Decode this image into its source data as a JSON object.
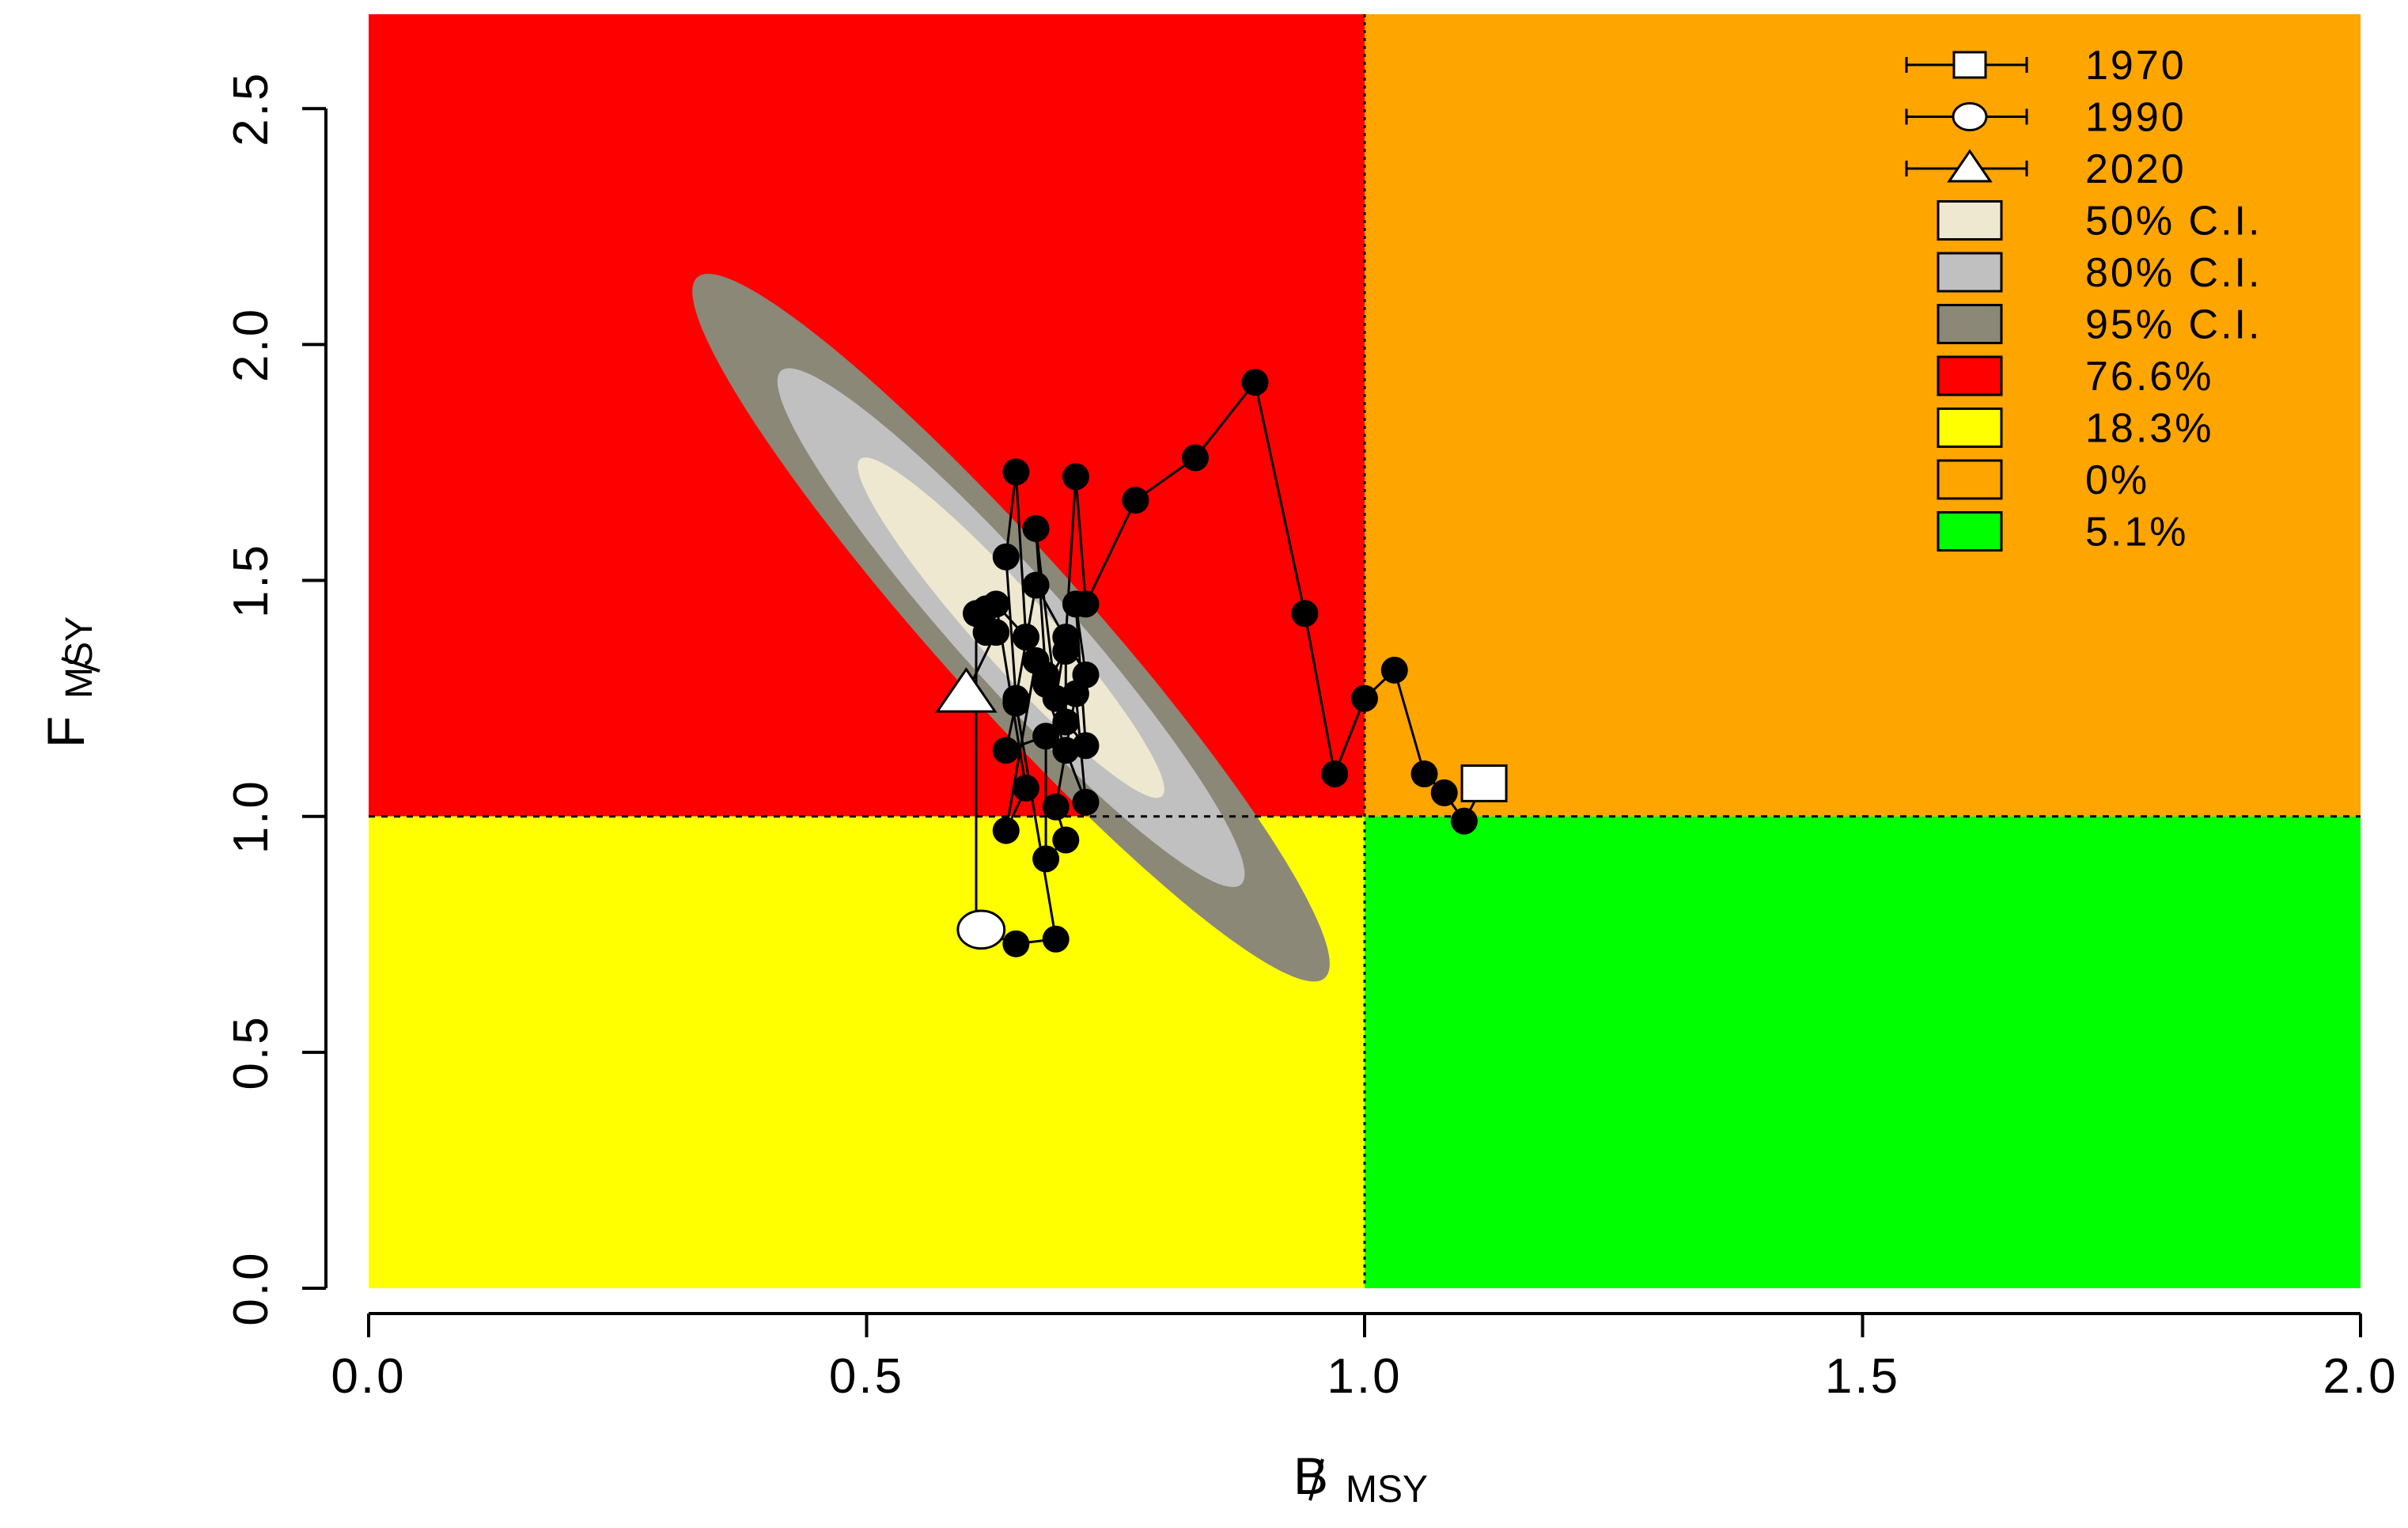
{
  "chart_data": {
    "type": "scatter",
    "title": "",
    "xlabel": {
      "main": "B",
      "sub": "MSY"
    },
    "ylabel": {
      "main": "F",
      "sub": "MSY"
    },
    "xlim": [
      0,
      2
    ],
    "ylim": [
      0,
      2.7
    ],
    "x_ticks": [
      {
        "value": 0.0,
        "label": "0.0"
      },
      {
        "value": 0.5,
        "label": "0.5"
      },
      {
        "value": 1.0,
        "label": "1.0"
      },
      {
        "value": 1.5,
        "label": "1.5"
      },
      {
        "value": 2.0,
        "label": "2.0"
      }
    ],
    "y_ticks": [
      {
        "value": 0.0,
        "label": "0.0"
      },
      {
        "value": 0.5,
        "label": "0.5"
      },
      {
        "value": 1.0,
        "label": "1.0"
      },
      {
        "value": 1.5,
        "label": "1.5"
      },
      {
        "value": 2.0,
        "label": "2.0"
      },
      {
        "value": 2.5,
        "label": "2.5"
      }
    ],
    "reference_lines": {
      "x": 1.0,
      "y": 1.0
    },
    "quadrants": [
      {
        "name": "red",
        "color": "#ff0000",
        "x": [
          0,
          1
        ],
        "y": [
          1,
          2.7
        ]
      },
      {
        "name": "orange",
        "color": "#ffa500",
        "x": [
          1,
          2
        ],
        "y": [
          1,
          2.7
        ]
      },
      {
        "name": "yellow",
        "color": "#ffff00",
        "x": [
          0,
          1
        ],
        "y": [
          0,
          1
        ]
      },
      {
        "name": "green",
        "color": "#00ff00",
        "x": [
          1,
          2
        ],
        "y": [
          0,
          1
        ]
      }
    ],
    "confidence_regions": [
      {
        "label": "95% C.I.",
        "color": "#8b8878",
        "center": [
          0.645,
          1.4
        ],
        "spread": [
          0.32,
          0.75
        ],
        "correlation": -0.95,
        "level": 0.95
      },
      {
        "label": "80% C.I.",
        "color": "#c0c0c0",
        "center": [
          0.645,
          1.4
        ],
        "spread": [
          0.32,
          0.75
        ],
        "correlation": -0.95,
        "level": 0.8
      },
      {
        "label": "50% C.I.",
        "color": "#eee8d0",
        "center": [
          0.645,
          1.4
        ],
        "spread": [
          0.32,
          0.75
        ],
        "correlation": -0.95,
        "level": 0.5
      }
    ],
    "trajectory": {
      "color": "#000000",
      "points": [
        [
          1.12,
          1.07
        ],
        [
          1.1,
          0.99
        ],
        [
          1.08,
          1.05
        ],
        [
          1.06,
          1.09
        ],
        [
          1.03,
          1.31
        ],
        [
          1.0,
          1.25
        ],
        [
          0.97,
          1.09
        ],
        [
          0.94,
          1.43
        ],
        [
          0.89,
          1.92
        ],
        [
          0.83,
          1.76
        ],
        [
          0.77,
          1.67
        ],
        [
          0.72,
          1.45
        ],
        [
          0.71,
          1.72
        ],
        [
          0.7,
          1.38
        ],
        [
          0.69,
          1.25
        ],
        [
          0.67,
          1.61
        ],
        [
          0.68,
          1.3
        ],
        [
          0.66,
          1.38
        ],
        [
          0.65,
          1.73
        ],
        [
          0.64,
          1.55
        ],
        [
          0.65,
          1.25
        ],
        [
          0.67,
          1.49
        ],
        [
          0.72,
          1.3
        ],
        [
          0.71,
          1.45
        ],
        [
          0.72,
          1.15
        ],
        [
          0.7,
          1.2
        ],
        [
          0.7,
          1.35
        ],
        [
          0.68,
          1.28
        ],
        [
          0.66,
          1.38
        ],
        [
          0.63,
          1.45
        ],
        [
          0.66,
          1.06
        ],
        [
          0.64,
          0.97
        ],
        [
          0.67,
          1.33
        ],
        [
          0.7,
          1.14
        ],
        [
          0.72,
          1.03
        ],
        [
          0.71,
          1.26
        ],
        [
          0.69,
          1.02
        ],
        [
          0.7,
          0.95
        ],
        [
          0.68,
          0.91
        ],
        [
          0.68,
          1.17
        ],
        [
          0.64,
          1.14
        ],
        [
          0.65,
          1.24
        ],
        [
          0.69,
          0.74
        ],
        [
          0.65,
          0.73
        ],
        [
          0.61,
          0.76
        ],
        [
          0.61,
          1.43
        ],
        [
          0.62,
          1.44
        ],
        [
          0.62,
          1.39
        ],
        [
          0.63,
          1.39
        ],
        [
          0.6,
          1.26
        ]
      ]
    },
    "highlighted_points": [
      {
        "label": "1970",
        "shape": "square",
        "x": 1.12,
        "y": 1.07
      },
      {
        "label": "1990",
        "shape": "circle",
        "x": 0.615,
        "y": 0.76
      },
      {
        "label": "2020",
        "shape": "triangle",
        "x": 0.6,
        "y": 1.26
      }
    ],
    "legend": {
      "position": "top-right",
      "entries": [
        {
          "label": "1970",
          "kind": "line-square",
          "color": "#ffffff"
        },
        {
          "label": "1990",
          "kind": "line-circle",
          "color": "#ffffff"
        },
        {
          "label": "2020",
          "kind": "line-triangle",
          "color": "#ffffff"
        },
        {
          "label": "50% C.I.",
          "kind": "box",
          "color": "#eee8d0"
        },
        {
          "label": "80% C.I.",
          "kind": "box",
          "color": "#c0c0c0"
        },
        {
          "label": "95% C.I.",
          "kind": "box",
          "color": "#8b8878"
        },
        {
          "label": "76.6%",
          "kind": "box",
          "color": "#ff0000"
        },
        {
          "label": "18.3%",
          "kind": "box",
          "color": "#ffff00"
        },
        {
          "label": "0%",
          "kind": "box",
          "color": "#ffa500"
        },
        {
          "label": "5.1%",
          "kind": "box",
          "color": "#00ff00"
        }
      ]
    }
  }
}
